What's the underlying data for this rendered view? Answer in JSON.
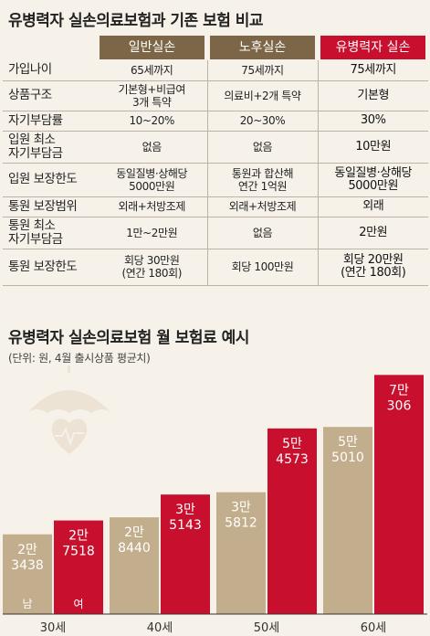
{
  "table_title": "유병력자 실손의료보험과 기존 보험 비교",
  "columns": [
    {
      "label": "일반실손",
      "color": "#7d6648"
    },
    {
      "label": "노후실손",
      "color": "#7d6648"
    },
    {
      "label": "유병력자 실손",
      "color": "#c8102e"
    }
  ],
  "rows": [
    {
      "label": [
        "가입나이"
      ],
      "cells": [
        [
          "65세까지"
        ],
        [
          "75세까지"
        ],
        [
          "75세까지"
        ]
      ]
    },
    {
      "label": [
        "상품구조"
      ],
      "cells": [
        [
          "기본형+비급여",
          "3개 특약"
        ],
        [
          "의료비+2개 특약"
        ],
        [
          "기본형"
        ]
      ]
    },
    {
      "label": [
        "자기부담률"
      ],
      "cells": [
        [
          "10~20%"
        ],
        [
          "20~30%"
        ],
        [
          "30%"
        ]
      ]
    },
    {
      "label": [
        "입원 최소",
        "자기부담금"
      ],
      "cells": [
        [
          "없음"
        ],
        [
          "없음"
        ],
        [
          "10만원"
        ]
      ]
    },
    {
      "label": [
        "입원 보장한도"
      ],
      "cells": [
        [
          "동일질병·상해당",
          "5000만원"
        ],
        [
          "통원과 합산해",
          "연간 1억원"
        ],
        [
          "동일질병·상해당",
          "5000만원"
        ]
      ]
    },
    {
      "label": [
        "통원 보장범위"
      ],
      "cells": [
        [
          "외래+처방조제"
        ],
        [
          "외래+처방조제"
        ],
        [
          "외래"
        ]
      ]
    },
    {
      "label": [
        "통원 최소",
        "자기부담금"
      ],
      "cells": [
        [
          "1만~2만원"
        ],
        [
          "없음"
        ],
        [
          "2만원"
        ]
      ]
    },
    {
      "label": [
        "통원 보장한도"
      ],
      "cells": [
        [
          "회당 30만원",
          "(연간 180회)"
        ],
        [
          "회당 100만원"
        ],
        [
          "회당 20만원",
          "(연간 180회)"
        ]
      ]
    }
  ],
  "chart_title": "유병력자 실손의료보험 월 보험료 예시",
  "chart_subtitle": "(단위: 원, 4월 출시상품 평균치)",
  "chart_data": {
    "type": "bar",
    "title": "유병력자 실손의료보험 월 보험료 예시",
    "subtitle": "(단위: 원, 4월 출시상품 평균치)",
    "categories": [
      "30세",
      "40세",
      "50세",
      "60세"
    ],
    "series": [
      {
        "name": "남",
        "color": "#c2ad8c",
        "values": [
          23438,
          28440,
          35812,
          55010
        ],
        "labels": [
          [
            "2만",
            "3438"
          ],
          [
            "2만",
            "8440"
          ],
          [
            "3만",
            "5812"
          ],
          [
            "5만",
            "5010"
          ]
        ]
      },
      {
        "name": "여",
        "color": "#c8102e",
        "values": [
          27518,
          35143,
          54573,
          70306
        ],
        "labels": [
          [
            "2만",
            "7518"
          ],
          [
            "3만",
            "5143"
          ],
          [
            "5만",
            "4573"
          ],
          [
            "7만",
            "306"
          ]
        ]
      }
    ],
    "ylim": [
      0,
      72000
    ],
    "grid": false,
    "legend": "in-bar"
  }
}
